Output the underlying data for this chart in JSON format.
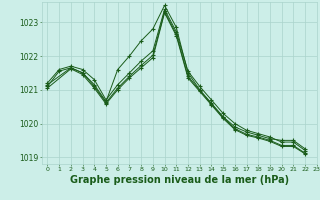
{
  "background_color": "#cceee8",
  "grid_color": "#aad4cc",
  "line_color": "#1a5c1a",
  "marker_color": "#1a5c1a",
  "xlabel": "Graphe pression niveau de la mer (hPa)",
  "xlabel_fontsize": 7,
  "ylim": [
    1018.8,
    1023.6
  ],
  "xlim": [
    -0.5,
    23
  ],
  "yticks": [
    1019,
    1020,
    1021,
    1022,
    1023
  ],
  "xticks": [
    0,
    1,
    2,
    3,
    4,
    5,
    6,
    7,
    8,
    9,
    10,
    11,
    12,
    13,
    14,
    15,
    16,
    17,
    18,
    19,
    20,
    21,
    22,
    23
  ],
  "xtick_labels": [
    "0",
    "1",
    "2",
    "3",
    "4",
    "5",
    "6",
    "7",
    "8",
    "9",
    "10",
    "11",
    "12",
    "13",
    "14",
    "15",
    "16",
    "17",
    "18",
    "19",
    "20",
    "21",
    "22",
    "23"
  ],
  "series": [
    {
      "x": [
        0,
        1,
        2,
        3,
        4,
        5,
        6,
        7,
        8,
        9,
        10,
        11,
        12,
        13,
        14,
        15,
        16,
        17,
        18,
        19,
        20,
        21,
        22
      ],
      "y": [
        1021.1,
        1021.55,
        1021.65,
        1021.5,
        1021.15,
        1020.65,
        1021.6,
        1022.0,
        1022.45,
        1022.8,
        1023.5,
        1022.85,
        1021.5,
        1021.0,
        1020.6,
        1020.2,
        1019.9,
        1019.75,
        1019.65,
        1019.55,
        1019.5,
        1019.5,
        1019.25
      ]
    },
    {
      "x": [
        0,
        1,
        2,
        3,
        4,
        5,
        6,
        7,
        8,
        9,
        10,
        11,
        12,
        13,
        14,
        15,
        16,
        17,
        18,
        19,
        20,
        21,
        22
      ],
      "y": [
        1021.2,
        1021.6,
        1021.7,
        1021.6,
        1021.3,
        1020.7,
        1021.15,
        1021.5,
        1021.85,
        1022.15,
        1023.38,
        1022.72,
        1021.55,
        1021.1,
        1020.7,
        1020.3,
        1020.0,
        1019.8,
        1019.7,
        1019.6,
        1019.45,
        1019.45,
        1019.2
      ]
    },
    {
      "x": [
        0,
        2,
        3,
        4,
        5,
        6,
        7,
        8,
        9,
        10,
        11,
        12,
        13,
        14,
        15,
        16,
        17,
        18,
        19,
        20,
        21,
        22
      ],
      "y": [
        1021.15,
        1021.65,
        1021.5,
        1021.1,
        1020.62,
        1021.05,
        1021.4,
        1021.72,
        1022.02,
        1023.32,
        1022.65,
        1021.4,
        1020.98,
        1020.58,
        1020.18,
        1019.85,
        1019.68,
        1019.6,
        1019.5,
        1019.35,
        1019.35,
        1019.12
      ]
    },
    {
      "x": [
        0,
        2,
        3,
        4,
        5,
        6,
        7,
        8,
        9,
        10,
        11,
        12,
        13,
        14,
        15,
        16,
        17,
        18,
        19,
        20,
        21,
        22
      ],
      "y": [
        1021.05,
        1021.62,
        1021.45,
        1021.05,
        1020.58,
        1021.0,
        1021.35,
        1021.65,
        1021.95,
        1023.28,
        1022.6,
        1021.35,
        1020.95,
        1020.55,
        1020.15,
        1019.82,
        1019.65,
        1019.57,
        1019.47,
        1019.32,
        1019.32,
        1019.1
      ]
    }
  ]
}
